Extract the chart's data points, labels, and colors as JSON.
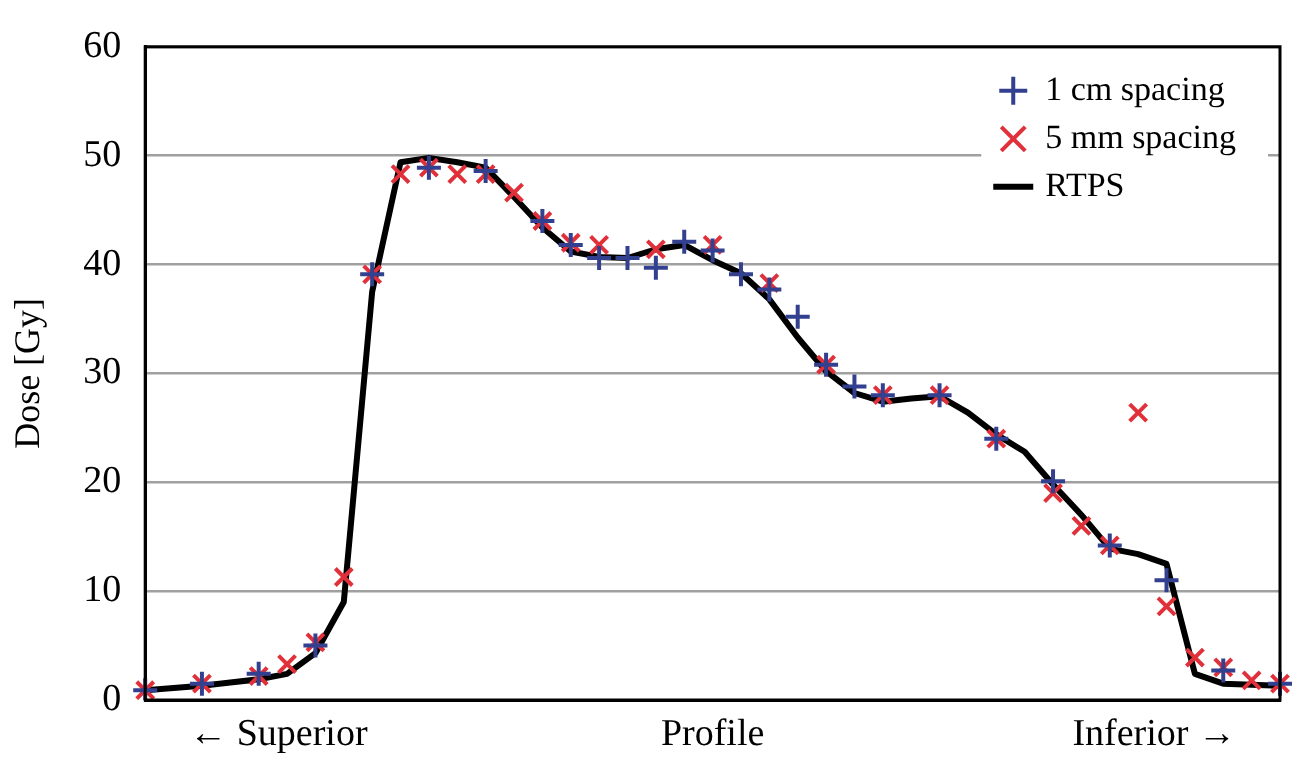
{
  "chart_data": {
    "type": "scatter",
    "xlabel": "Profile",
    "ylabel": "Dose [Gy]",
    "annotations": [
      "← Superior",
      "Inferior →"
    ],
    "categories": [
      null,
      null,
      null,
      null,
      null,
      null,
      null,
      null,
      null,
      null,
      null,
      null,
      null,
      null,
      null,
      null,
      null,
      null,
      null,
      null,
      null,
      null,
      null,
      null,
      null,
      null,
      null,
      null,
      null,
      null,
      null,
      null,
      null,
      null,
      null,
      null,
      null,
      null,
      null,
      null,
      null
    ],
    "ylim": [
      0,
      60
    ],
    "yticks": [
      0,
      10,
      20,
      30,
      40,
      50,
      60
    ],
    "grid": "y",
    "legend": "top right",
    "tick_labels": "y",
    "series": [
      {
        "name": "1 cm spacing",
        "marker": "cross",
        "color": "#33408f",
        "values": [
          0.9,
          null,
          1.5,
          null,
          2.4,
          null,
          5.0,
          null,
          39.1,
          null,
          48.9,
          null,
          48.6,
          null,
          44,
          41.8,
          40.6,
          40.6,
          39.7,
          42.1,
          41.3,
          39.1,
          37.7,
          35.2,
          30.8,
          28.8,
          28.0,
          null,
          28.0,
          null,
          24.0,
          null,
          20.1,
          null,
          14.2,
          null,
          11.0,
          null,
          2.7,
          null,
          1.5
        ]
      },
      {
        "name": "5 mm spacing",
        "marker": "x",
        "color": "#e0303a",
        "values": [
          0.9,
          null,
          1.5,
          null,
          2.2,
          3.3,
          5.3,
          11.3,
          39.1,
          48.3,
          48.9,
          48.3,
          48.3,
          46.6,
          44,
          42,
          41.8,
          null,
          41.4,
          null,
          41.8,
          null,
          38.3,
          null,
          30.8,
          null,
          28,
          null,
          28,
          null,
          24,
          null,
          19,
          16,
          14.2,
          26.4,
          8.6,
          3.9,
          3.0,
          1.8,
          1.5
        ]
      },
      {
        "name": "RTPS",
        "type": "line",
        "marker": "none",
        "line_style": "solid",
        "color": "#000000",
        "values": [
          0.9,
          1.1,
          1.3,
          1.6,
          1.9,
          2.4,
          4.3,
          9,
          37.5,
          49.4,
          49.8,
          49.4,
          48.9,
          46.2,
          43.4,
          41.2,
          40.7,
          40.6,
          41.4,
          41.8,
          40.4,
          39.2,
          36.8,
          33.3,
          30.2,
          28.2,
          27.4,
          27.7,
          27.9,
          26.4,
          24.4,
          22.8,
          19.8,
          17,
          13.9,
          13.4,
          12.5,
          2.4,
          1.5,
          1.4,
          1.3
        ]
      }
    ]
  }
}
